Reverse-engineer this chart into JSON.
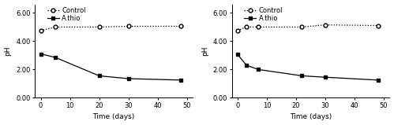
{
  "left": {
    "control_x": [
      0,
      5,
      20,
      30,
      48
    ],
    "control_y": [
      4.75,
      5.0,
      5.0,
      5.05,
      5.05
    ],
    "athio_x": [
      0,
      5,
      20,
      30,
      48
    ],
    "athio_y": [
      3.1,
      2.85,
      1.55,
      1.35,
      1.25
    ],
    "xlabel": "Time (days)",
    "ylabel": "pH",
    "ylim": [
      0,
      6.6
    ],
    "yticks": [
      0.0,
      2.0,
      4.0,
      6.0
    ],
    "xticks": [
      0,
      10,
      20,
      30,
      40,
      50
    ],
    "xlim": [
      -2,
      52
    ]
  },
  "right": {
    "control_x": [
      0,
      3,
      7,
      22,
      30,
      48
    ],
    "control_y": [
      4.75,
      5.0,
      5.0,
      5.0,
      5.15,
      5.1
    ],
    "athio_x": [
      0,
      3,
      7,
      22,
      30,
      48
    ],
    "athio_y": [
      3.05,
      2.3,
      2.0,
      1.55,
      1.45,
      1.25
    ],
    "xlabel": "Time (days)",
    "ylabel": "pH",
    "ylim": [
      0,
      6.6
    ],
    "yticks": [
      0.0,
      2.0,
      4.0,
      6.0
    ],
    "xticks": [
      0,
      10,
      20,
      30,
      40,
      50
    ],
    "xlim": [
      -2,
      52
    ]
  },
  "legend_control": "Control",
  "legend_athio": "A.thio",
  "bg_color": "white",
  "fontsize": 6.5,
  "tick_fontsize": 6.0
}
